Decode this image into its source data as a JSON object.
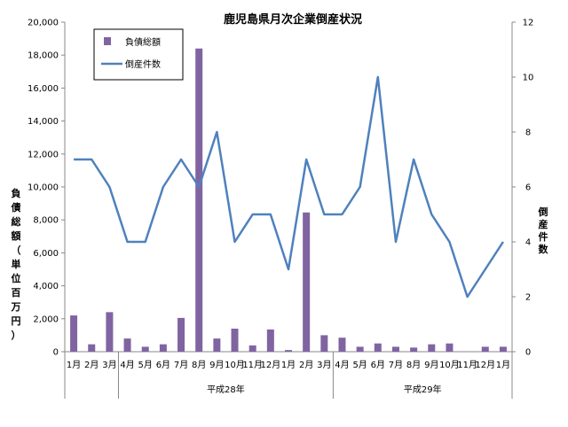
{
  "chart_data": {
    "type": "bar+line",
    "title": "鹿児島県月次企業倒産状況",
    "y_left_label": "負債総額（単位百万円）",
    "y_right_label": "倒産件数",
    "ylim_left": [
      0,
      20000
    ],
    "ylim_right": [
      0,
      12
    ],
    "left_ticks": [
      "0",
      "2,000",
      "4,000",
      "6,000",
      "8,000",
      "10,000",
      "12,000",
      "14,000",
      "16,000",
      "18,000",
      "20,000"
    ],
    "right_ticks": [
      "0",
      "2",
      "4",
      "6",
      "8",
      "10",
      "12"
    ],
    "categories": [
      "1月",
      "2月",
      "3月",
      "4月",
      "5月",
      "6月",
      "7月",
      "8月",
      "9月",
      "10月",
      "11月",
      "12月",
      "1月",
      "2月",
      "3月",
      "4月",
      "5月",
      "6月",
      "7月",
      "8月",
      "9月",
      "10月",
      "11月",
      "12月",
      "1月"
    ],
    "groups": [
      {
        "label": "",
        "start": 0,
        "end": 2
      },
      {
        "label": "平成28年",
        "start": 3,
        "end": 14
      },
      {
        "label": "平成29年",
        "start": 15,
        "end": 24
      }
    ],
    "series": [
      {
        "name": "負債総額",
        "kind": "bar",
        "axis": "left",
        "color": "#8064A2",
        "values": [
          2200,
          450,
          2400,
          800,
          300,
          450,
          2050,
          18400,
          800,
          1400,
          380,
          1350,
          100,
          8450,
          1000,
          850,
          300,
          500,
          300,
          250,
          450,
          500,
          0,
          300,
          300
        ]
      },
      {
        "name": "倒産件数",
        "kind": "line",
        "axis": "right",
        "color": "#4F81BD",
        "values": [
          7,
          7,
          6,
          4,
          4,
          6,
          7,
          6,
          8,
          4,
          5,
          5,
          3,
          7,
          5,
          5,
          6,
          10,
          4,
          7,
          5,
          4,
          2,
          3,
          4
        ]
      }
    ],
    "legend_position": "top-left",
    "grid": false
  }
}
